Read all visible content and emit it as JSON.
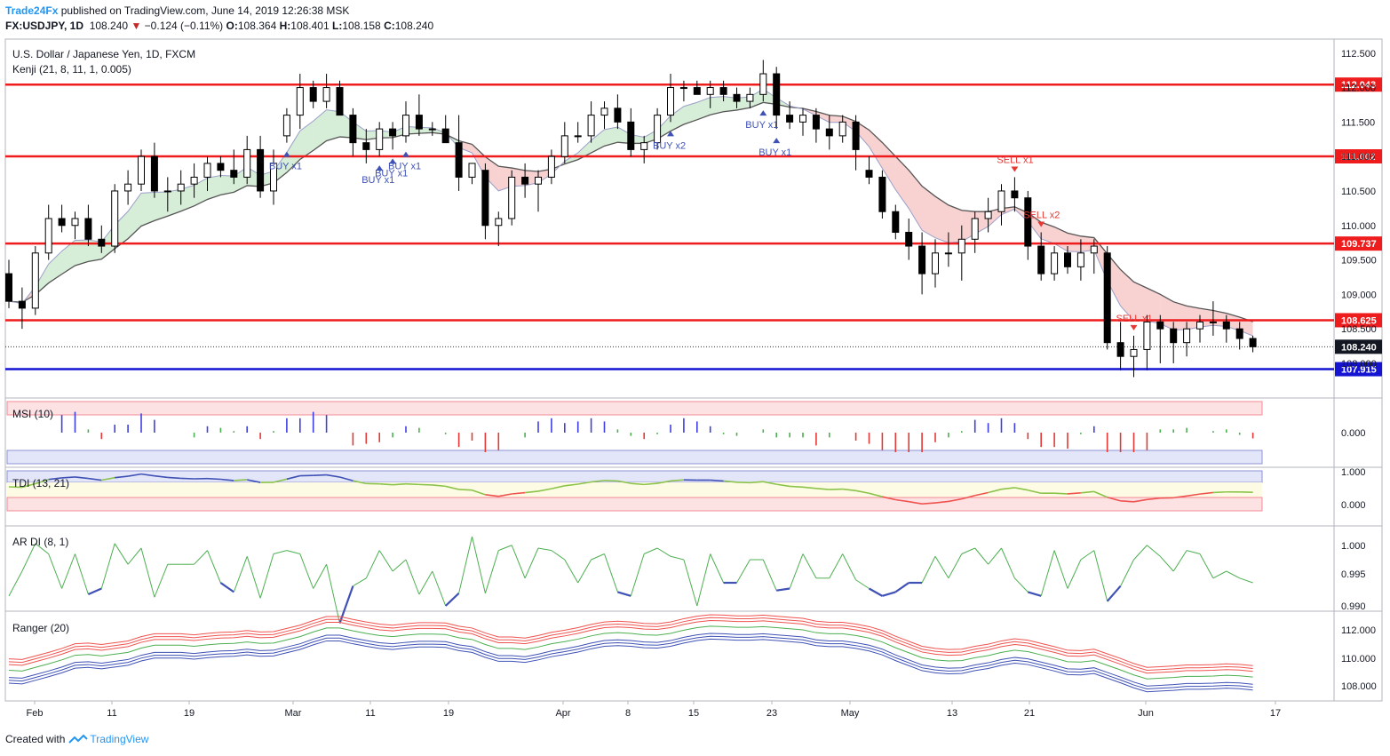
{
  "header": {
    "brand": "Trade24Fx",
    "published": "published on TradingView.com, June 14, 2019 12:26:38 MSK",
    "symbol": "FX:USDJPY, 1D",
    "last": "108.240",
    "change": "−0.124 (−0.11%)",
    "o_label": "O:",
    "o": "108.364",
    "h_label": "H:",
    "h": "108.401",
    "l_label": "L:",
    "l": "108.158",
    "c_label": "C:",
    "c": "108.240"
  },
  "main_pane": {
    "title": "U.S. Dollar / Japanese Yen, 1D, FXCM",
    "indicator": "Kenji (21, 8, 11, 1, 0.005)",
    "axis_ticks": [
      "112.500",
      "112.000",
      "111.500",
      "111.000",
      "110.500",
      "110.000",
      "109.500",
      "109.000",
      "108.500",
      "108.000"
    ],
    "price_lines": [
      {
        "value": "112.043",
        "color": "#ee1c1c"
      },
      {
        "value": "111.002",
        "color": "#ee1c1c"
      },
      {
        "value": "109.737",
        "color": "#ee1c1c"
      },
      {
        "value": "108.625",
        "color": "#ee1c1c"
      },
      {
        "value": "107.915",
        "color": "#1414d2"
      }
    ],
    "last_price": "108.240",
    "signals": [
      {
        "text": "BUY x1",
        "color": "#3f51b5"
      },
      {
        "text": "BUY x1",
        "color": "#3f51b5"
      },
      {
        "text": "BUY x1",
        "color": "#3f51b5"
      },
      {
        "text": "BUY x1",
        "color": "#3f51b5"
      },
      {
        "text": "BUY x2",
        "color": "#3f51b5"
      },
      {
        "text": "BUY x1",
        "color": "#3f51b5"
      },
      {
        "text": "BUY x1",
        "color": "#3f51b5"
      },
      {
        "text": "SELL x1",
        "color": "#e53935"
      },
      {
        "text": "SELL x2",
        "color": "#e53935"
      },
      {
        "text": "SELL x1",
        "color": "#e53935"
      }
    ]
  },
  "msi_pane": {
    "title": "MSI (10)",
    "ticks": [
      "0.000"
    ]
  },
  "tdi_pane": {
    "title": "TDI (13, 21)",
    "ticks": [
      "1.000",
      "0.000"
    ]
  },
  "ardi_pane": {
    "title": "AR DI (8, 1)",
    "ticks": [
      "1.000",
      "0.995",
      "0.990"
    ]
  },
  "ranger_pane": {
    "title": "Ranger (20)",
    "ticks": [
      "112.000",
      "110.000",
      "108.000"
    ]
  },
  "x_axis": [
    "Feb",
    "11",
    "19",
    "Mar",
    "11",
    "19",
    "Apr",
    "8",
    "15",
    "23",
    "May",
    "13",
    "21",
    "Jun",
    "17"
  ],
  "footer": {
    "created": "Created with",
    "tv": "TradingView"
  },
  "chart_data": {
    "type": "candlestick",
    "series": [
      {
        "name": "USDJPY",
        "values": [
          [
            109.3,
            109.5,
            108.8,
            108.9
          ],
          [
            108.9,
            109.1,
            108.5,
            108.8
          ],
          [
            108.8,
            109.7,
            108.7,
            109.6
          ],
          [
            109.6,
            110.3,
            109.5,
            110.1
          ],
          [
            110.1,
            110.3,
            109.9,
            110.0
          ],
          [
            110.0,
            110.2,
            109.8,
            110.1
          ],
          [
            110.1,
            110.3,
            109.7,
            109.8
          ],
          [
            109.8,
            110.0,
            109.6,
            109.7
          ],
          [
            109.7,
            110.6,
            109.6,
            110.5
          ],
          [
            110.5,
            110.8,
            110.3,
            110.6
          ],
          [
            110.6,
            111.1,
            110.5,
            111.0
          ],
          [
            111.0,
            111.2,
            110.4,
            110.5
          ],
          [
            110.5,
            110.7,
            110.2,
            110.5
          ],
          [
            110.5,
            110.8,
            110.3,
            110.6
          ],
          [
            110.6,
            110.9,
            110.4,
            110.7
          ],
          [
            110.7,
            111.0,
            110.5,
            110.9
          ],
          [
            110.9,
            111.0,
            110.7,
            110.8
          ],
          [
            110.8,
            111.1,
            110.6,
            110.7
          ],
          [
            110.7,
            111.3,
            110.6,
            111.1
          ],
          [
            111.1,
            111.3,
            110.4,
            110.5
          ],
          [
            110.5,
            111.1,
            110.3,
            110.9
          ],
          [
            111.3,
            111.7,
            111.2,
            111.6
          ],
          [
            111.6,
            112.2,
            111.4,
            112.0
          ],
          [
            112.0,
            112.1,
            111.7,
            111.8
          ],
          [
            111.8,
            112.2,
            111.7,
            112.0
          ],
          [
            112.0,
            112.1,
            111.7,
            111.6
          ],
          [
            111.6,
            111.7,
            111.0,
            111.2
          ],
          [
            111.2,
            111.4,
            110.9,
            111.1
          ],
          [
            111.1,
            111.5,
            111.0,
            111.4
          ],
          [
            111.4,
            111.5,
            111.1,
            111.3
          ],
          [
            111.3,
            111.8,
            111.2,
            111.6
          ],
          [
            111.6,
            111.9,
            111.3,
            111.4
          ],
          [
            111.4,
            111.5,
            111.3,
            111.4
          ],
          [
            111.4,
            111.6,
            111.2,
            111.2
          ],
          [
            111.2,
            111.6,
            110.5,
            110.7
          ],
          [
            110.7,
            110.9,
            110.6,
            110.9
          ],
          [
            110.8,
            110.9,
            109.8,
            110.0
          ],
          [
            110.0,
            110.2,
            109.7,
            110.1
          ],
          [
            110.1,
            110.8,
            110.0,
            110.7
          ],
          [
            110.7,
            110.9,
            110.4,
            110.6
          ],
          [
            110.6,
            110.8,
            110.2,
            110.7
          ],
          [
            110.7,
            111.1,
            110.6,
            111.0
          ],
          [
            111.0,
            111.5,
            110.9,
            111.3
          ],
          [
            111.3,
            111.5,
            111.2,
            111.3
          ],
          [
            111.3,
            111.8,
            111.2,
            111.6
          ],
          [
            111.6,
            111.8,
            111.4,
            111.7
          ],
          [
            111.7,
            111.9,
            111.4,
            111.5
          ],
          [
            111.5,
            111.7,
            111.0,
            111.1
          ],
          [
            111.1,
            111.3,
            110.9,
            111.2
          ],
          [
            111.2,
            111.7,
            111.1,
            111.6
          ],
          [
            111.6,
            112.2,
            111.5,
            112.0
          ],
          [
            112.0,
            112.1,
            111.8,
            112.0
          ],
          [
            112.0,
            112.1,
            111.9,
            111.9
          ],
          [
            111.9,
            112.1,
            111.7,
            112.0
          ],
          [
            112.0,
            112.1,
            111.8,
            111.9
          ],
          [
            111.9,
            112.0,
            111.7,
            111.8
          ],
          [
            111.8,
            112.0,
            111.7,
            111.9
          ],
          [
            111.9,
            112.4,
            111.8,
            112.2
          ],
          [
            112.2,
            112.3,
            111.4,
            111.6
          ],
          [
            111.6,
            111.8,
            111.4,
            111.5
          ],
          [
            111.5,
            111.7,
            111.3,
            111.6
          ],
          [
            111.6,
            111.7,
            111.2,
            111.4
          ],
          [
            111.4,
            111.6,
            111.1,
            111.3
          ],
          [
            111.3,
            111.6,
            111.2,
            111.5
          ],
          [
            111.5,
            111.6,
            110.8,
            111.1
          ],
          [
            110.8,
            111.0,
            110.6,
            110.7
          ],
          [
            110.7,
            110.8,
            110.1,
            110.2
          ],
          [
            110.2,
            110.3,
            109.8,
            109.9
          ],
          [
            109.9,
            110.1,
            109.5,
            109.7
          ],
          [
            109.7,
            109.9,
            109.0,
            109.3
          ],
          [
            109.3,
            109.8,
            109.1,
            109.6
          ],
          [
            109.6,
            109.9,
            109.4,
            109.6
          ],
          [
            109.6,
            110.0,
            109.2,
            109.8
          ],
          [
            109.8,
            110.2,
            109.6,
            110.1
          ],
          [
            110.1,
            110.4,
            109.9,
            110.2
          ],
          [
            110.2,
            110.6,
            110.0,
            110.5
          ],
          [
            110.5,
            110.7,
            110.2,
            110.4
          ],
          [
            110.4,
            110.5,
            109.5,
            109.7
          ],
          [
            109.7,
            109.9,
            109.2,
            109.3
          ],
          [
            109.3,
            109.7,
            109.2,
            109.6
          ],
          [
            109.6,
            109.7,
            109.3,
            109.4
          ],
          [
            109.4,
            109.8,
            109.2,
            109.6
          ],
          [
            109.6,
            109.8,
            109.3,
            109.7
          ],
          [
            109.6,
            109.7,
            108.2,
            108.3
          ],
          [
            108.3,
            108.6,
            107.9,
            108.1
          ],
          [
            108.1,
            108.4,
            107.8,
            108.2
          ],
          [
            108.2,
            108.7,
            107.9,
            108.6
          ],
          [
            108.6,
            108.7,
            108.0,
            108.5
          ],
          [
            108.5,
            108.6,
            108.0,
            108.3
          ],
          [
            108.3,
            108.6,
            108.1,
            108.5
          ],
          [
            108.5,
            108.7,
            108.3,
            108.6
          ],
          [
            108.6,
            108.9,
            108.4,
            108.6
          ],
          [
            108.6,
            108.7,
            108.3,
            108.5
          ],
          [
            108.5,
            108.6,
            108.2,
            108.36
          ],
          [
            108.36,
            108.4,
            108.16,
            108.24
          ]
        ]
      }
    ],
    "y_range": [
      107.5,
      112.7
    ],
    "x_labels": [
      "Feb",
      "11",
      "19",
      "Mar",
      "11",
      "19",
      "Apr",
      "8",
      "15",
      "23",
      "May",
      "13",
      "21",
      "Jun",
      "17"
    ]
  }
}
